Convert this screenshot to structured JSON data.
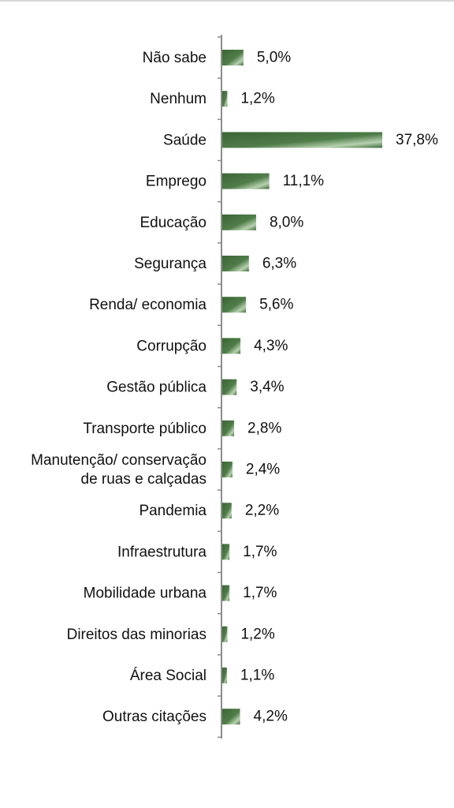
{
  "chart_data": {
    "type": "bar",
    "orientation": "horizontal",
    "categories": [
      "Não sabe",
      "Nenhum",
      "Saúde",
      "Emprego",
      "Educação",
      "Segurança",
      "Renda/ economia",
      "Corrupção",
      "Gestão pública",
      "Transporte público",
      [
        "Manutenção/ conservação",
        "de ruas e calçadas"
      ],
      "Pandemia",
      "Infraestrutura",
      "Mobilidade urbana",
      "Direitos das minorias",
      "Área Social",
      "Outras citações"
    ],
    "values": [
      5.0,
      1.2,
      37.8,
      11.1,
      8.0,
      6.3,
      5.6,
      4.3,
      3.4,
      2.8,
      2.4,
      2.2,
      1.7,
      1.7,
      1.2,
      1.1,
      4.2
    ],
    "value_labels": [
      "5,0%",
      "1,2%",
      "37,8%",
      "11,1%",
      "8,0%",
      "6,3%",
      "5,6%",
      "4,3%",
      "3,4%",
      "2,8%",
      "2,4%",
      "2,2%",
      "1,7%",
      "1,7%",
      "1,2%",
      "1,1%",
      "4,2%"
    ],
    "grid": false,
    "legend": "none",
    "bar_color": "#3f6b3a",
    "bar_highlight": "#a9c6a2"
  }
}
